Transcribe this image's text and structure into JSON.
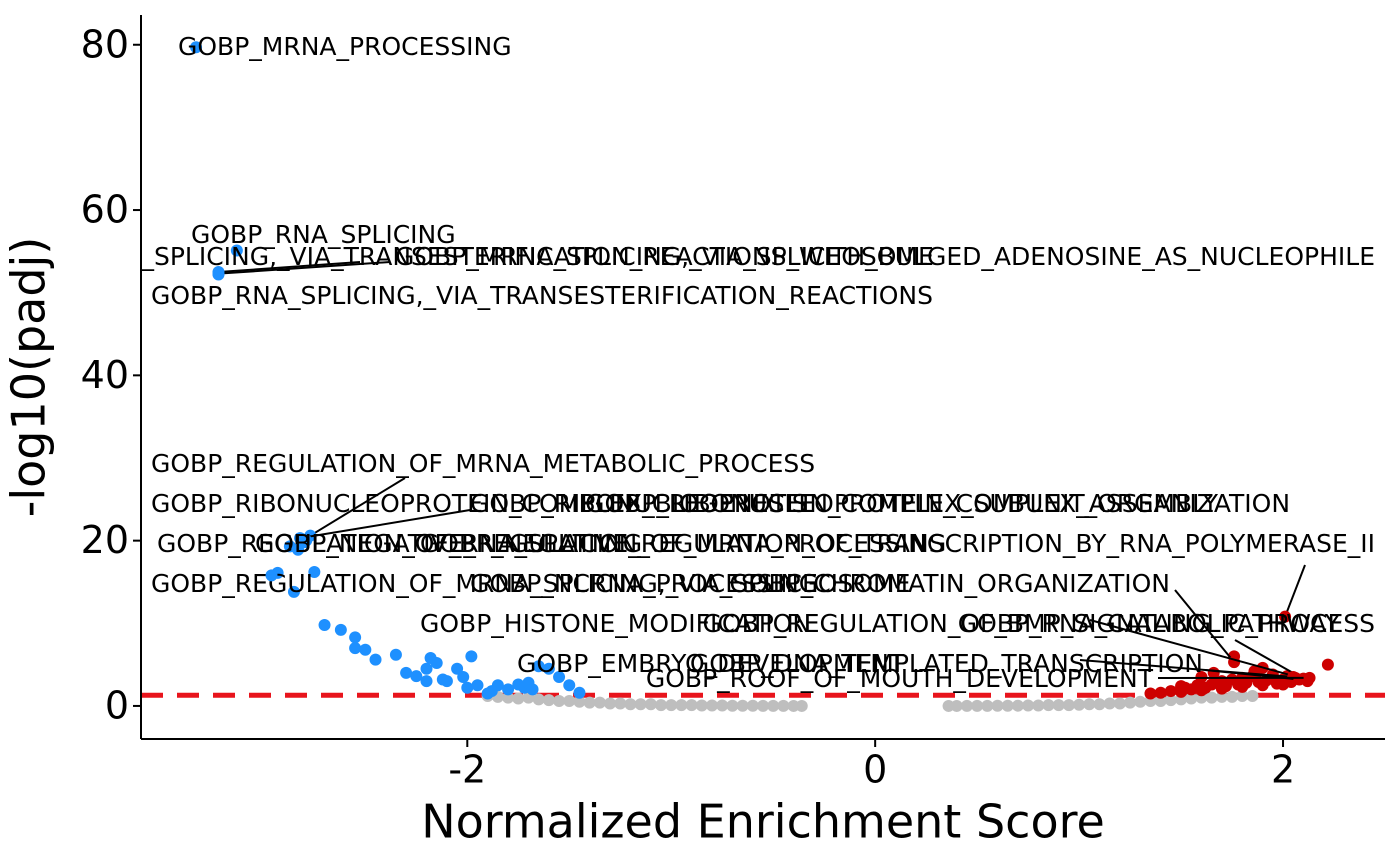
{
  "chart_data": {
    "type": "scatter",
    "xlabel": "Normalized Enrichment Score",
    "ylabel": "-log10(padj)",
    "xlim": [
      -3.6,
      2.5
    ],
    "ylim": [
      -4,
      83.6
    ],
    "xticks": [
      -2,
      0,
      2
    ],
    "yticks": [
      0,
      20,
      40,
      60,
      80
    ],
    "threshold": 1.3,
    "threshold_color": "#e8141c",
    "grid": false,
    "series": [
      {
        "color": "#bebebe",
        "x": [
          -1.9,
          -1.85,
          -1.8,
          -1.75,
          -1.7,
          -1.65,
          -1.6,
          -1.55,
          -1.5,
          -1.45,
          -1.4,
          -1.35,
          -1.3,
          -1.25,
          -1.2,
          -1.15,
          -1.1,
          -1.05,
          -1.0,
          -0.95,
          -0.9,
          -0.85,
          -0.8,
          -0.75,
          -0.7,
          -0.65,
          -0.6,
          -0.55,
          -0.5,
          -0.45,
          -0.4,
          -0.36,
          0.36,
          0.4,
          0.45,
          0.5,
          0.55,
          0.6,
          0.65,
          0.7,
          0.75,
          0.8,
          0.85,
          0.9,
          0.95,
          1.0,
          1.05,
          1.1,
          1.15,
          1.2,
          1.25,
          1.3,
          1.35,
          1.4,
          1.45,
          1.5,
          1.55,
          1.6,
          1.65,
          1.7,
          1.75,
          1.8,
          1.85
        ],
        "values": [
          1.2,
          1.1,
          1.0,
          0.9,
          1.0,
          0.8,
          0.7,
          0.6,
          0.6,
          0.5,
          0.4,
          0.4,
          0.3,
          0.3,
          0.2,
          0.2,
          0.2,
          0.1,
          0.1,
          0.1,
          0.1,
          0.05,
          0.05,
          0.05,
          0.02,
          0.02,
          0.02,
          0.01,
          0.01,
          0.01,
          0.0,
          0.0,
          0.0,
          0.0,
          0.01,
          0.01,
          0.01,
          0.02,
          0.02,
          0.03,
          0.05,
          0.05,
          0.1,
          0.1,
          0.1,
          0.15,
          0.2,
          0.2,
          0.3,
          0.3,
          0.4,
          0.5,
          0.6,
          0.6,
          0.7,
          0.8,
          0.9,
          1.0,
          1.0,
          1.1,
          1.1,
          1.2,
          1.2
        ]
      },
      {
        "color": "#1e90ff",
        "x": [
          -2.85,
          -2.75,
          -2.7,
          -2.62,
          -2.55,
          -2.55,
          -2.5,
          -2.45,
          -2.35,
          -2.3,
          -2.25,
          -2.2,
          -2.18,
          -2.15,
          -2.12,
          -2.1,
          -2.05,
          -2.02,
          -1.98,
          -1.95,
          -1.9,
          -1.85,
          -1.8,
          -1.75,
          -1.72,
          -1.7,
          -1.65,
          -1.6,
          -1.55,
          -1.5,
          -1.45,
          -2.2,
          -2.0,
          -1.88,
          -1.68
        ],
        "values": [
          13.8,
          16.2,
          9.8,
          9.2,
          8.3,
          7.0,
          6.8,
          5.6,
          6.2,
          4.0,
          3.6,
          4.5,
          5.8,
          5.2,
          3.2,
          3.0,
          4.5,
          3.5,
          6.0,
          2.5,
          1.5,
          2.5,
          2.0,
          2.6,
          2.2,
          2.8,
          4.8,
          4.5,
          3.5,
          2.5,
          1.6,
          3.0,
          2.2,
          1.8,
          2.0
        ]
      },
      {
        "color": "#cd0000",
        "x": [
          1.35,
          1.4,
          1.45,
          1.5,
          1.52,
          1.55,
          1.58,
          1.6,
          1.62,
          1.65,
          1.68,
          1.7,
          1.72,
          1.75,
          1.76,
          1.78,
          1.8,
          1.82,
          1.85,
          1.88,
          1.9,
          1.92,
          1.95,
          1.97,
          2.0,
          2.02,
          2.04,
          2.06,
          1.5,
          1.6,
          1.7,
          1.8,
          1.9,
          2.0,
          1.66,
          1.86
        ],
        "values": [
          1.5,
          1.6,
          1.8,
          1.7,
          2.2,
          2.0,
          2.5,
          3.5,
          2.2,
          2.6,
          2.8,
          3.0,
          2.4,
          3.2,
          6.0,
          2.6,
          3.4,
          2.8,
          3.6,
          2.9,
          4.6,
          3.1,
          3.8,
          2.7,
          3.2,
          3.6,
          2.9,
          3.4,
          2.4,
          1.9,
          2.1,
          2.3,
          2.5,
          2.6,
          4.0,
          4.2
        ]
      }
    ],
    "annotations": [
      {
        "label": "GOBP_MRNA_PROCESSING",
        "x": -3.33,
        "y": 79.7,
        "color": "#1e90ff"
      },
      {
        "label": "GOBP_RNA_SPLICING",
        "x": -3.13,
        "y": 55.1,
        "color": "#1e90ff"
      },
      {
        "label": "GOBP_RNA_SPLICING,_VIA_TRANSESTERIFICATION_REACTIONS_WITH_BULGED_ADENOSINE_AS_NUCLEOPHILE",
        "x": -3.22,
        "y": 52.5,
        "color": "#1e90ff"
      },
      {
        "label": "GOBP_MRNA_SPLICING,_VIA_SPLICEOSOME",
        "x": -3.22,
        "y": 52.3,
        "color": "#1e90ff"
      },
      {
        "label": "GOBP_RNA_SPLICING,_VIA_TRANSESTERIFICATION_REACTIONS",
        "x": -3.22,
        "y": 52.2,
        "color": "#1e90ff"
      },
      {
        "label": "GOBP_REGULATION_OF_MRNA_METABOLIC_PROCESS",
        "x": -2.77,
        "y": 20.6,
        "color": "#1e90ff"
      },
      {
        "label": "GOBP_RIBONUCLEOPROTEIN_COMPLEX_BIOGENESIS",
        "x": -2.82,
        "y": 20.3,
        "color": "#1e90ff"
      },
      {
        "label": "GOBP_RIBONUCLEOPROTEIN_COMPLEX_SUBUNIT_ORGANIZATION",
        "x": -2.79,
        "y": 20.0,
        "color": "#1e90ff"
      },
      {
        "label": "GOBP_RIBONUCLEOPROTEIN_COMPLEX_ASSEMBLY",
        "x": -2.8,
        "y": 19.8,
        "color": "#1e90ff"
      },
      {
        "label": "GOBP_REGULATION_OF_RNA_SPLICING",
        "x": -2.87,
        "y": 19.3,
        "color": "#1e90ff"
      },
      {
        "label": "GOBP_NEGATIVE_REGULATION_OF_MRNA_PROCESSING",
        "x": -2.83,
        "y": 18.9,
        "color": "#1e90ff"
      },
      {
        "label": "GOBP_NEGATIVE_REGULATION_OF_TRANSCRIPTION_BY_RNA_POLYMERASE_II",
        "x": 2.01,
        "y": 10.8,
        "color": "#cd0000"
      },
      {
        "label": "GOBP_REGULATION_OF_MRNA_SPLICING,_VIA_SPLICEOSOME",
        "x": -2.93,
        "y": 16.1,
        "color": "#1e90ff"
      },
      {
        "label": "GOBP_NCRNA_PROCESSING",
        "x": -2.96,
        "y": 15.8,
        "color": "#1e90ff"
      },
      {
        "label": "GOBP_CHROMATIN_ORGANIZATION",
        "x": 1.76,
        "y": 5.3,
        "color": "#cd0000"
      },
      {
        "label": "GOBP_HISTONE_MODIFICATION",
        "x": 2.1,
        "y": 3.3,
        "color": "#cd0000"
      },
      {
        "label": "GOBP_REGULATION_OF_BMP_SIGNALING_PATHWAY",
        "x": 2.12,
        "y": 3.0,
        "color": "#cd0000"
      },
      {
        "label": "GOBP_RNA_CATABOLIC_PROCESS",
        "x": 2.22,
        "y": 5.0,
        "color": "#cd0000"
      },
      {
        "label": "GOBP_EMBRYO_DEVELOPMENT",
        "x": 2.05,
        "y": 3.5,
        "color": "#cd0000"
      },
      {
        "label": "GOBP_DNA_TEMPLATED_TRANSCRIPTION",
        "x": 2.08,
        "y": 3.2,
        "color": "#cd0000"
      },
      {
        "label": "GOBP_ROOF_OF_MOUTH_DEVELOPMENT",
        "x": 2.13,
        "y": 3.4,
        "color": "#cd0000"
      }
    ]
  }
}
